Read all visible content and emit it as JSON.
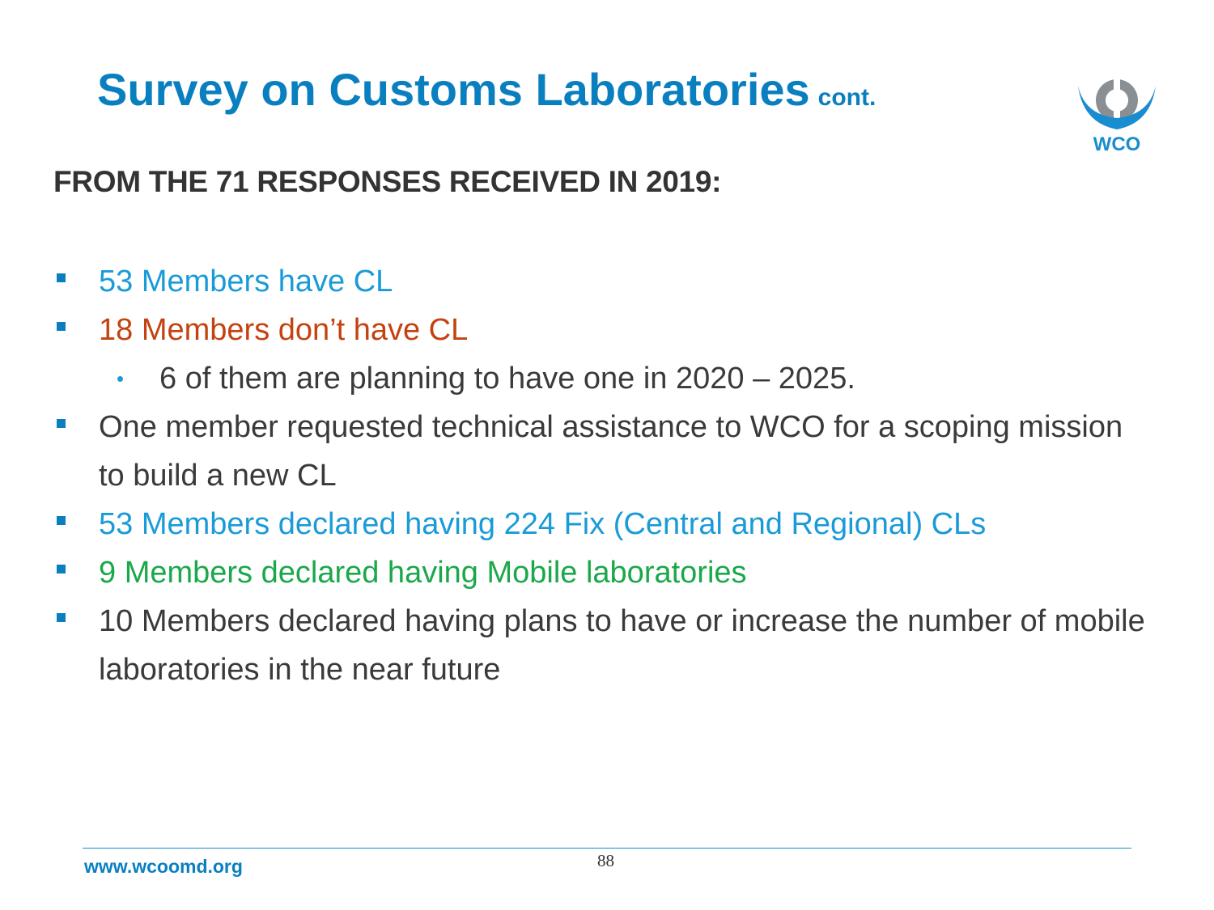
{
  "header": {
    "title": "Survey on Customs Laboratories",
    "title_suffix": "cont.",
    "logo_text": "WCO"
  },
  "heading": "FROM THE 71 RESPONSES RECEIVED IN 2019:",
  "bullets": [
    {
      "text": "53 Members have CL",
      "level": 1,
      "color": "#1a9bd7"
    },
    {
      "text": "18 Members don’t have CL",
      "level": 1,
      "color": "#c4420f"
    },
    {
      "text": "6 of them are planning to have one in 2020 – 2025.",
      "level": 2,
      "color": "#3a3a3a"
    },
    {
      "text": "One member requested technical assistance to WCO for a scoping mission to build a new CL",
      "level": 1,
      "color": "#3a3a3a"
    },
    {
      "text": "53 Members declared having 224 Fix (Central and Regional) CLs",
      "level": 1,
      "color": "#1a9bd7"
    },
    {
      "text": "9 Members declared having Mobile laboratories",
      "level": 1,
      "color": "#1aa84a"
    },
    {
      "text": "10 Members declared having plans to have or increase the number of mobile laboratories in the near future",
      "level": 1,
      "color": "#3a3a3a"
    }
  ],
  "footer": {
    "url": "www.wcoomd.org",
    "page": 88
  }
}
